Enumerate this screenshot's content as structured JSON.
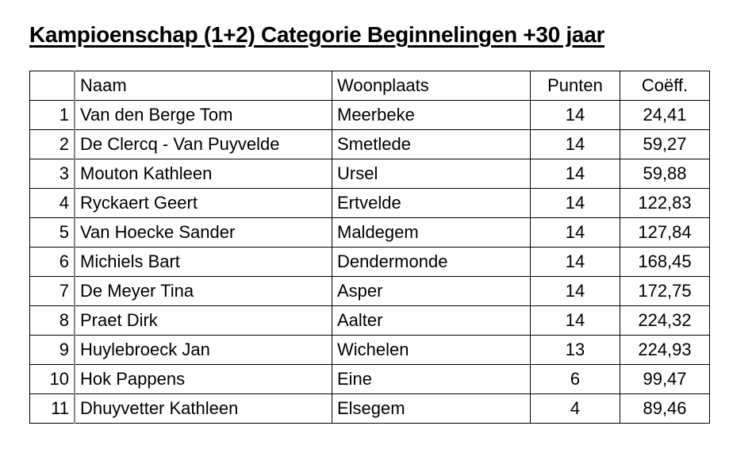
{
  "title": "Kampioenschap (1+2) Categorie Beginnelingen +30 jaar",
  "table": {
    "headers": [
      "",
      "Naam",
      "Woonplaats",
      "Punten",
      "Coëff."
    ],
    "rows": [
      [
        "1",
        "Van den Berge Tom",
        "Meerbeke",
        "14",
        "24,41"
      ],
      [
        "2",
        "De Clercq - Van Puyvelde",
        "Smetlede",
        "14",
        "59,27"
      ],
      [
        "3",
        "Mouton Kathleen",
        "Ursel",
        "14",
        "59,88"
      ],
      [
        "4",
        "Ryckaert Geert",
        "Ertvelde",
        "14",
        "122,83"
      ],
      [
        "5",
        "Van Hoecke Sander",
        "Maldegem",
        "14",
        "127,84"
      ],
      [
        "6",
        "Michiels Bart",
        "Dendermonde",
        "14",
        "168,45"
      ],
      [
        "7",
        "De Meyer Tina",
        "Asper",
        "14",
        "172,75"
      ],
      [
        "8",
        "Praet Dirk",
        "Aalter",
        "14",
        "224,32"
      ],
      [
        "9",
        "Huylebroeck Jan",
        "Wichelen",
        "13",
        "224,93"
      ],
      [
        "10",
        "Hok Pappens",
        "Eine",
        "6",
        "99,47"
      ],
      [
        "11",
        "Dhuyvetter Kathleen",
        "Elsegem",
        "4",
        "89,46"
      ]
    ]
  }
}
